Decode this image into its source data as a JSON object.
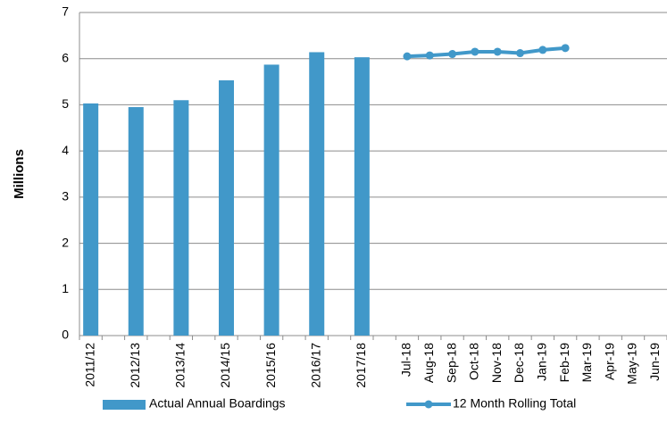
{
  "chart_data": {
    "type": "bar",
    "y_axis_label": "Millions",
    "categories": [
      "2011/12",
      null,
      "2012/13",
      null,
      "2013/14",
      null,
      "2014/15",
      null,
      "2015/16",
      null,
      "2016/17",
      null,
      "2017/18",
      null,
      "Jul-18",
      "Aug-18",
      "Sep-18",
      "Oct-18",
      "Nov-18",
      "Dec-18",
      "Jan-19",
      "Feb-19",
      "Mar-19",
      "Apr-19",
      "May-19",
      "Jun-19"
    ],
    "series": [
      {
        "name": "Actual Annual Boardings",
        "type": "bar",
        "color": "#4198c9",
        "values": [
          5.03,
          null,
          4.95,
          null,
          5.1,
          null,
          5.53,
          null,
          5.87,
          null,
          6.14,
          null,
          6.03,
          null,
          null,
          null,
          null,
          null,
          null,
          null,
          null,
          null,
          null,
          null,
          null,
          null
        ]
      },
      {
        "name": "12 Month Rolling Total",
        "type": "line",
        "color": "#4198c9",
        "values": [
          null,
          null,
          null,
          null,
          null,
          null,
          null,
          null,
          null,
          null,
          null,
          null,
          null,
          null,
          6.05,
          6.07,
          6.1,
          6.15,
          6.15,
          6.12,
          6.19,
          6.23,
          null,
          null,
          null,
          null
        ]
      }
    ],
    "ylim": [
      0,
      7
    ],
    "yticks": [
      0,
      1,
      2,
      3,
      4,
      5,
      6,
      7
    ],
    "grid": true,
    "legend": "bottom"
  }
}
